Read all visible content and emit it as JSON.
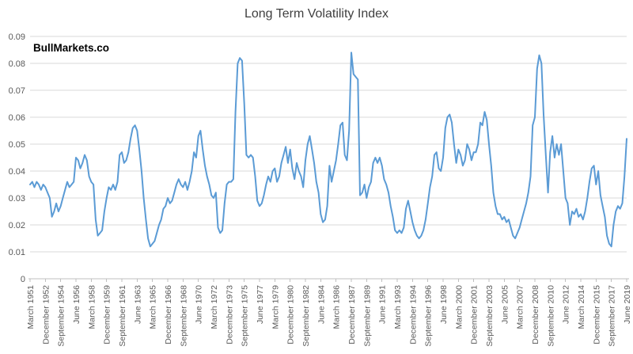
{
  "title": "Long Term Volatility Index",
  "watermark": "BullMarkets.co",
  "colors": {
    "line": "#5B9BD5",
    "gridline": "#D9D9D9",
    "axis_line": "#BFBFBF",
    "tick_label": "#595959",
    "title": "#404040",
    "watermark": "#000000",
    "background": "#FFFFFF"
  },
  "chart_data": {
    "type": "line",
    "title": "Long Term Volatility Index",
    "series_name": "Long Term Volatility Index",
    "x_frequency": "quarterly",
    "x_start_label": "March 1951",
    "x_end_label": "June 2019",
    "x_tick_every": 7,
    "x_label_rotation": -90,
    "grid": "horizontal",
    "legend": "none",
    "ylim": [
      0,
      0.09
    ],
    "y_ticks": [
      0,
      0.01,
      0.02,
      0.03,
      0.04,
      0.05,
      0.06,
      0.07,
      0.08,
      0.09
    ],
    "y_tick_labels": [
      "0",
      "0.01",
      "0.02",
      "0.03",
      "0.04",
      "0.05",
      "0.06",
      "0.07",
      "0.08",
      "0.09"
    ],
    "x_tick_labels": [
      "March 1951",
      "December 1952",
      "September 1954",
      "June 1956",
      "March 1958",
      "December 1959",
      "September 1961",
      "June 1963",
      "March 1965",
      "December 1966",
      "September 1968",
      "June 1970",
      "March 1972",
      "December 1973",
      "September 1975",
      "June 1977",
      "March 1979",
      "December 1980",
      "September 1982",
      "June 1984",
      "March 1986",
      "December 1987",
      "September 1989",
      "June 1991",
      "March 1993",
      "December 1994",
      "September 1996",
      "June 1998",
      "March 2000",
      "December 2001",
      "September 2003",
      "June 2005",
      "March 2007",
      "December 2008",
      "September 2010",
      "June 2012",
      "March 2014",
      "December 2015",
      "September 2017",
      "June 2019"
    ],
    "values": [
      0.035,
      0.036,
      0.034,
      0.036,
      0.035,
      0.033,
      0.035,
      0.034,
      0.032,
      0.03,
      0.023,
      0.025,
      0.028,
      0.025,
      0.027,
      0.03,
      0.033,
      0.036,
      0.034,
      0.035,
      0.036,
      0.045,
      0.044,
      0.041,
      0.043,
      0.046,
      0.044,
      0.038,
      0.036,
      0.035,
      0.022,
      0.016,
      0.017,
      0.018,
      0.025,
      0.03,
      0.034,
      0.033,
      0.035,
      0.033,
      0.036,
      0.046,
      0.047,
      0.043,
      0.044,
      0.047,
      0.052,
      0.056,
      0.057,
      0.055,
      0.048,
      0.04,
      0.03,
      0.022,
      0.015,
      0.012,
      0.013,
      0.014,
      0.017,
      0.02,
      0.022,
      0.026,
      0.027,
      0.03,
      0.028,
      0.029,
      0.032,
      0.035,
      0.037,
      0.035,
      0.034,
      0.036,
      0.033,
      0.036,
      0.04,
      0.047,
      0.045,
      0.053,
      0.055,
      0.048,
      0.042,
      0.038,
      0.035,
      0.031,
      0.03,
      0.032,
      0.019,
      0.017,
      0.018,
      0.028,
      0.035,
      0.036,
      0.036,
      0.037,
      0.062,
      0.08,
      0.082,
      0.081,
      0.065,
      0.046,
      0.045,
      0.046,
      0.045,
      0.038,
      0.029,
      0.027,
      0.028,
      0.031,
      0.035,
      0.038,
      0.036,
      0.04,
      0.041,
      0.036,
      0.038,
      0.043,
      0.046,
      0.049,
      0.043,
      0.048,
      0.041,
      0.037,
      0.043,
      0.04,
      0.038,
      0.034,
      0.044,
      0.05,
      0.053,
      0.048,
      0.043,
      0.036,
      0.032,
      0.024,
      0.021,
      0.022,
      0.027,
      0.042,
      0.036,
      0.04,
      0.044,
      0.05,
      0.057,
      0.058,
      0.046,
      0.044,
      0.055,
      0.084,
      0.076,
      0.075,
      0.074,
      0.031,
      0.032,
      0.035,
      0.03,
      0.034,
      0.036,
      0.043,
      0.045,
      0.043,
      0.045,
      0.042,
      0.037,
      0.035,
      0.032,
      0.027,
      0.023,
      0.018,
      0.017,
      0.018,
      0.017,
      0.019,
      0.026,
      0.029,
      0.025,
      0.021,
      0.018,
      0.016,
      0.015,
      0.016,
      0.018,
      0.022,
      0.028,
      0.034,
      0.038,
      0.046,
      0.047,
      0.041,
      0.04,
      0.045,
      0.056,
      0.06,
      0.061,
      0.058,
      0.05,
      0.043,
      0.048,
      0.046,
      0.042,
      0.044,
      0.05,
      0.048,
      0.044,
      0.047,
      0.047,
      0.05,
      0.058,
      0.057,
      0.062,
      0.059,
      0.05,
      0.042,
      0.032,
      0.027,
      0.024,
      0.024,
      0.022,
      0.023,
      0.021,
      0.022,
      0.019,
      0.016,
      0.015,
      0.017,
      0.019,
      0.022,
      0.025,
      0.028,
      0.032,
      0.038,
      0.057,
      0.06,
      0.078,
      0.083,
      0.08,
      0.061,
      0.046,
      0.032,
      0.047,
      0.053,
      0.045,
      0.05,
      0.046,
      0.05,
      0.04,
      0.03,
      0.028,
      0.02,
      0.025,
      0.024,
      0.026,
      0.023,
      0.024,
      0.022,
      0.025,
      0.03,
      0.036,
      0.041,
      0.042,
      0.035,
      0.04,
      0.031,
      0.027,
      0.023,
      0.016,
      0.013,
      0.012,
      0.02,
      0.025,
      0.027,
      0.026,
      0.028,
      0.038,
      0.052
    ]
  }
}
